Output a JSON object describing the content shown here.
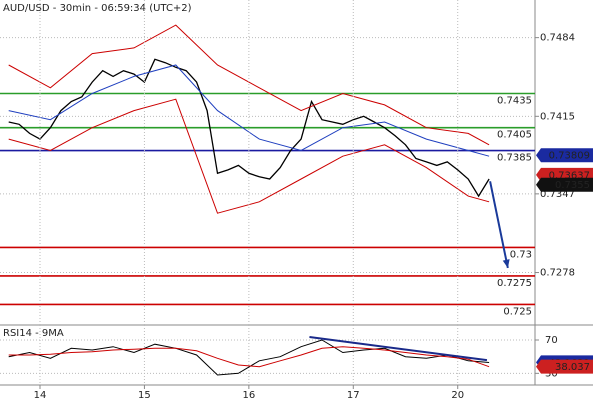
{
  "chart_data": [
    {
      "type": "line",
      "title": "AUD/USD - 30min - 06:59:34 (UTC+2)",
      "grid": true,
      "xlim": [
        -0.383,
        4.74
      ],
      "ylim": [
        0.7232,
        0.7517
      ],
      "yticks": [
        0.7484,
        0.7415,
        0.7347,
        0.7278
      ],
      "series": [
        {
          "color": "#000000",
          "width": 1.3,
          "x": [
            -0.3,
            -0.2,
            -0.1,
            0,
            0.1,
            0.2,
            0.3,
            0.4,
            0.5,
            0.6,
            0.7,
            0.8,
            0.9,
            1,
            1.1,
            1.2,
            1.3,
            1.4,
            1.5,
            1.6,
            1.7,
            1.8,
            1.9,
            2,
            2.1,
            2.2,
            2.3,
            2.4,
            2.5,
            2.6,
            2.7,
            2.8,
            2.9,
            3,
            3.1,
            3.2,
            3.3,
            3.4,
            3.5,
            3.6,
            3.7,
            3.8,
            3.9,
            4,
            4.1,
            4.2,
            4.3
          ],
          "values": [
            0.741,
            0.7408,
            0.74,
            0.7395,
            0.7405,
            0.742,
            0.7428,
            0.7432,
            0.7445,
            0.7455,
            0.745,
            0.7455,
            0.7452,
            0.7445,
            0.7465,
            0.7462,
            0.7458,
            0.7455,
            0.7445,
            0.742,
            0.7365,
            0.7368,
            0.7372,
            0.7365,
            0.7362,
            0.736,
            0.737,
            0.7385,
            0.7395,
            0.7428,
            0.7412,
            0.741,
            0.7408,
            0.7412,
            0.7415,
            0.741,
            0.7405,
            0.7398,
            0.739,
            0.7378,
            0.7375,
            0.7372,
            0.7375,
            0.7368,
            0.736,
            0.7345,
            0.736
          ]
        },
        {
          "color": "#cc0000",
          "width": 1,
          "x": [
            -0.3,
            0.1,
            0.5,
            0.9,
            1.3,
            1.7,
            2.1,
            2.5,
            2.9,
            3.3,
            3.7,
            4.1,
            4.3
          ],
          "values": [
            0.746,
            0.744,
            0.747,
            0.7475,
            0.7495,
            0.746,
            0.744,
            0.742,
            0.7435,
            0.7425,
            0.7405,
            0.74,
            0.739
          ]
        },
        {
          "color": "#cc0000",
          "width": 1,
          "x": [
            -0.3,
            0.1,
            0.5,
            0.9,
            1.3,
            1.7,
            2.1,
            2.5,
            2.9,
            3.3,
            3.7,
            4.1,
            4.3
          ],
          "values": [
            0.7395,
            0.7385,
            0.7405,
            0.742,
            0.743,
            0.733,
            0.734,
            0.736,
            0.738,
            0.739,
            0.737,
            0.7345,
            0.734
          ]
        },
        {
          "color": "#1f3fbf",
          "width": 1,
          "x": [
            -0.3,
            0.1,
            0.5,
            0.9,
            1.3,
            1.7,
            2.1,
            2.5,
            2.9,
            3.3,
            3.7,
            4.1,
            4.3
          ],
          "values": [
            0.742,
            0.7412,
            0.7435,
            0.745,
            0.746,
            0.742,
            0.7395,
            0.7385,
            0.7405,
            0.741,
            0.7395,
            0.7385,
            0.738
          ]
        }
      ],
      "levels": [
        {
          "value": 0.7435,
          "color": "#2a9d2a"
        },
        {
          "value": 0.7405,
          "color": "#2a9d2a"
        },
        {
          "value": 0.7385,
          "color": "#1a1aa0"
        },
        {
          "value": 0.73,
          "color": "#cc0000"
        },
        {
          "value": 0.7275,
          "color": "#cc0000"
        },
        {
          "value": 0.725,
          "color": "#cc0000"
        }
      ],
      "price_tags": [
        {
          "value": 0.73809,
          "color": "#1a2aa0"
        },
        {
          "value": 0.73637,
          "color": "#cc2020"
        },
        {
          "value": 0.7355,
          "color": "#111111"
        }
      ],
      "arrow": {
        "x": [
          4.31,
          4.48
        ],
        "y": [
          0.7358,
          0.7282
        ],
        "color": "#1a3a9a"
      }
    },
    {
      "type": "line",
      "title": "RSI14 - 9MA",
      "grid": true,
      "xlim": [
        -0.383,
        4.74
      ],
      "ylim": [
        16,
        88
      ],
      "yticks": [
        70,
        30
      ],
      "xticks": [
        {
          "value": 0,
          "label": "14"
        },
        {
          "value": 1,
          "label": "15"
        },
        {
          "value": 2,
          "label": "16"
        },
        {
          "value": 3,
          "label": "17"
        },
        {
          "value": 4,
          "label": "20"
        }
      ],
      "series": [
        {
          "color": "#000000",
          "width": 1,
          "x": [
            -0.3,
            -0.1,
            0.1,
            0.3,
            0.5,
            0.7,
            0.9,
            1.1,
            1.3,
            1.5,
            1.7,
            1.9,
            2.1,
            2.3,
            2.5,
            2.7,
            2.9,
            3.1,
            3.3,
            3.5,
            3.7,
            3.9,
            4.1,
            4.3
          ],
          "values": [
            50,
            55,
            48,
            60,
            58,
            62,
            55,
            65,
            60,
            52,
            28,
            30,
            45,
            50,
            62,
            70,
            55,
            58,
            60,
            50,
            48,
            52,
            45,
            43
          ]
        },
        {
          "color": "#cc0000",
          "width": 1,
          "x": [
            -0.3,
            -0.1,
            0.1,
            0.3,
            0.5,
            0.7,
            0.9,
            1.1,
            1.3,
            1.5,
            1.7,
            1.9,
            2.1,
            2.3,
            2.5,
            2.7,
            2.9,
            3.1,
            3.3,
            3.5,
            3.7,
            3.9,
            4.1,
            4.3
          ],
          "values": [
            52,
            52,
            53,
            55,
            56,
            58,
            59,
            60,
            60,
            57,
            48,
            40,
            38,
            45,
            52,
            60,
            62,
            60,
            58,
            55,
            52,
            50,
            47,
            38
          ]
        }
      ],
      "price_tags": [
        {
          "value": 43.1621,
          "color": "#1a2aa0"
        },
        {
          "value": 38.037,
          "color": "#cc2020"
        }
      ],
      "trend_line": {
        "x": [
          2.58,
          4.28
        ],
        "y": [
          73.6,
          45.8
        ],
        "color": "#1a2a8a"
      }
    }
  ]
}
